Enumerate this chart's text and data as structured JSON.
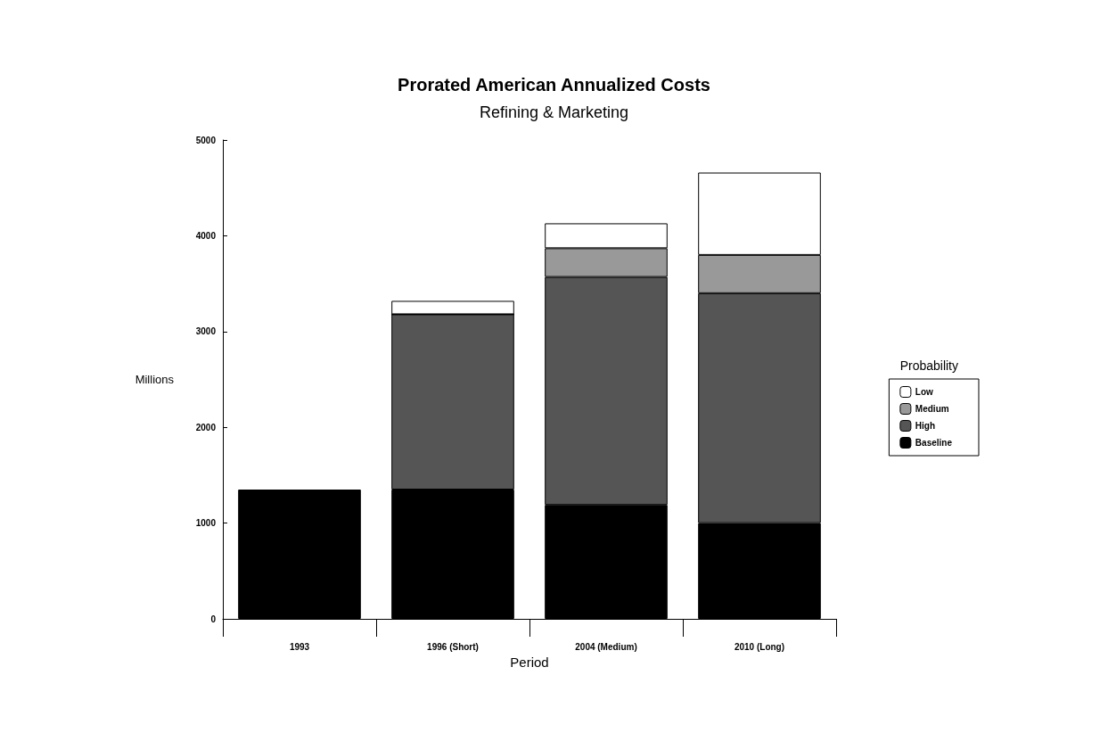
{
  "chart_data": {
    "type": "bar",
    "title": "Prorated American Annualized Costs",
    "subtitle": "Refining & Marketing",
    "xlabel": "Period",
    "ylabel": "Millions",
    "legend_title": "Probability",
    "categories": [
      "1993",
      "1996 (Short)",
      "2004 (Medium)",
      "2010 (Long)"
    ],
    "stacked": true,
    "series": [
      {
        "name": "Baseline",
        "color": "#000000",
        "values": [
          1350,
          1350,
          1190,
          1000
        ]
      },
      {
        "name": "High",
        "color": "#555555",
        "values": [
          null,
          1830,
          2380,
          2400
        ]
      },
      {
        "name": "Medium",
        "color": "#999999",
        "values": [
          null,
          0,
          300,
          400
        ]
      },
      {
        "name": "Low",
        "color": "#ffffff",
        "values": [
          null,
          140,
          260,
          860
        ]
      }
    ],
    "ylim": [
      0,
      5000
    ],
    "yticks": [
      0,
      1000,
      2000,
      3000,
      4000,
      5000
    ],
    "grid": false,
    "legend": "right"
  }
}
